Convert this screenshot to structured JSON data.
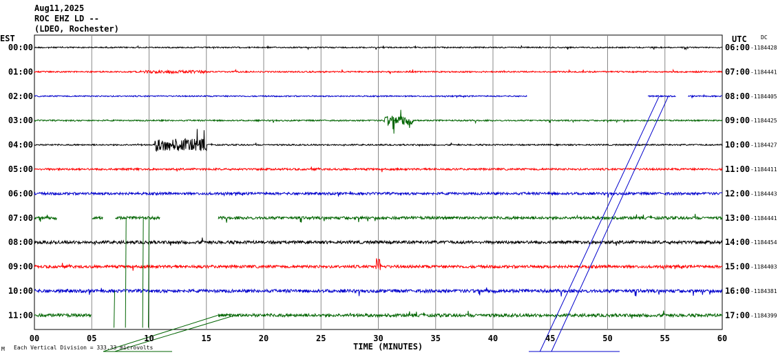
{
  "header": {
    "date": "Aug11,2025",
    "station": "ROC EHZ LD --",
    "network": "(LDEO, Rochester)"
  },
  "axes": {
    "left_zone": "EST",
    "right_zone": "UTC",
    "right_dc_label": "DC",
    "xlabel": "TIME (MINUTES)",
    "footer_note": "Each Vertical Division =   333.33 microvolts"
  },
  "colors": {
    "black": "#000000",
    "red": "#ff0000",
    "blue": "#0000cc",
    "green": "#006400",
    "grid": "#888888"
  },
  "chart_data": {
    "type": "line",
    "title": "ROC EHZ LD -- (LDEO, Rochester)",
    "xlabel": "TIME (MINUTES)",
    "ylabel": "",
    "xlim": [
      0,
      60
    ],
    "x_ticks": [
      "00",
      "05",
      "10",
      "15",
      "20",
      "25",
      "30",
      "35",
      "40",
      "45",
      "50",
      "55",
      "60"
    ],
    "grid": true,
    "rows": [
      {
        "est": "00:00",
        "utc": "06:00",
        "dc": "-1184428",
        "color": "#000000",
        "amp": 0.9,
        "gaps": [],
        "events": []
      },
      {
        "est": "01:00",
        "utc": "07:00",
        "dc": "-1184441",
        "color": "#ff0000",
        "amp": 1.0,
        "gaps": [],
        "events": [
          [
            9.5,
            15,
            2.2
          ]
        ]
      },
      {
        "est": "02:00",
        "utc": "08:00",
        "dc": "-1184405",
        "color": "#0000cc",
        "amp": 0.9,
        "gaps": [
          [
            43,
            53.5
          ],
          [
            56,
            57
          ]
        ],
        "events": []
      },
      {
        "est": "03:00",
        "utc": "09:00",
        "dc": "-1184425",
        "color": "#006400",
        "amp": 1.0,
        "gaps": [],
        "events": [
          [
            30.5,
            33,
            7
          ]
        ]
      },
      {
        "est": "04:00",
        "utc": "10:00",
        "dc": "-1184427",
        "color": "#000000",
        "amp": 1.0,
        "gaps": [],
        "events": [
          [
            10.5,
            15,
            9
          ]
        ]
      },
      {
        "est": "05:00",
        "utc": "11:00",
        "dc": "-1184411",
        "color": "#ff0000",
        "amp": 1.4,
        "gaps": [],
        "events": []
      },
      {
        "est": "06:00",
        "utc": "12:00",
        "dc": "-1184443",
        "color": "#0000cc",
        "amp": 1.8,
        "gaps": [],
        "events": []
      },
      {
        "est": "07:00",
        "utc": "13:00",
        "dc": "-1184441",
        "color": "#006400",
        "amp": 2.0,
        "gaps": [
          [
            2,
            5
          ],
          [
            6,
            7
          ],
          [
            11,
            16
          ]
        ],
        "events": []
      },
      {
        "est": "08:00",
        "utc": "14:00",
        "dc": "-1184454",
        "color": "#000000",
        "amp": 2.2,
        "gaps": [],
        "events": []
      },
      {
        "est": "09:00",
        "utc": "15:00",
        "dc": "-1184403",
        "color": "#ff0000",
        "amp": 2.0,
        "gaps": [],
        "events": [
          [
            29.8,
            30.2,
            6
          ]
        ]
      },
      {
        "est": "10:00",
        "utc": "16:00",
        "dc": "-1184381",
        "color": "#0000cc",
        "amp": 2.3,
        "gaps": [],
        "events": []
      },
      {
        "est": "11:00",
        "utc": "17:00",
        "dc": "-1184399",
        "color": "#006400",
        "amp": 2.2,
        "gaps": [
          [
            5,
            16
          ]
        ],
        "events": []
      }
    ]
  }
}
